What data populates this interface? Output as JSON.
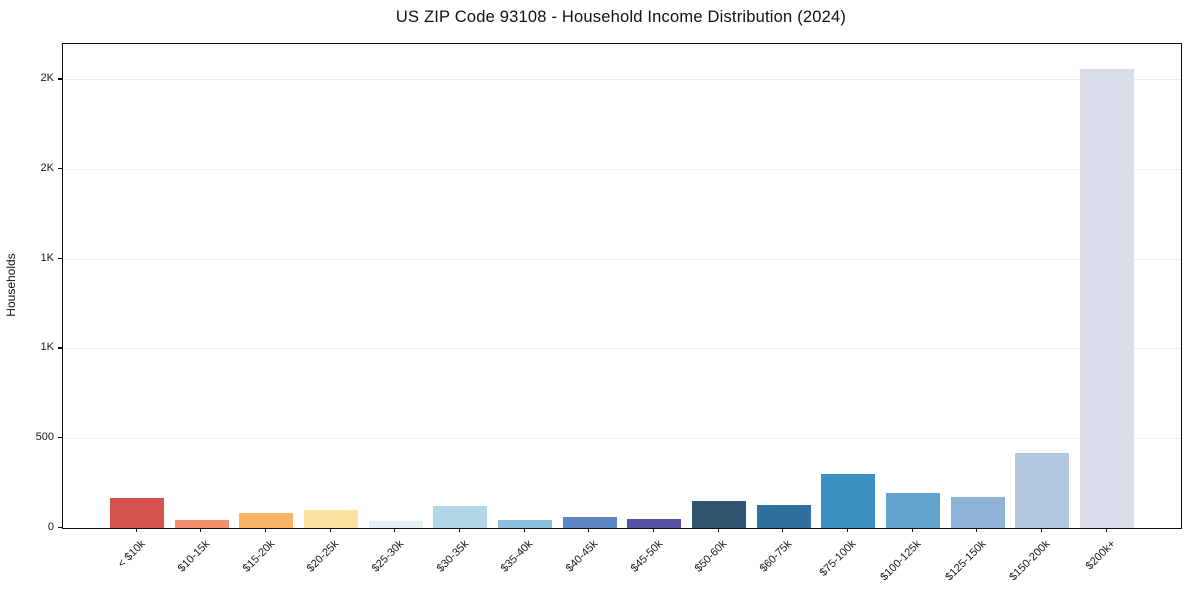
{
  "title": "US ZIP Code 93108 - Household Income Distribution (2024)",
  "chart_data": {
    "type": "bar",
    "title": "US ZIP Code 93108 - Household Income Distribution (2024)",
    "xlabel": "",
    "ylabel": "Households",
    "ylim": [
      0,
      2700
    ],
    "grid": "horizontal-gridlines-on",
    "legend": "none",
    "categories": [
      "< $10k",
      "$10-15k",
      "$15-20k",
      "$20-25k",
      "$25-30k",
      "$30-35k",
      "$35-40k",
      "$40-45k",
      "$45-50k",
      "$50-60k",
      "$60-75k",
      "$75-100k",
      "$100-125k",
      "$125-150k",
      "$150-200k",
      "$200k+"
    ],
    "values": [
      170,
      42,
      85,
      103,
      38,
      122,
      44,
      64,
      48,
      152,
      126,
      300,
      197,
      174,
      416,
      2560
    ],
    "bar_colors": [
      "#d6524e",
      "#f2906e",
      "#f9b468",
      "#fce2a0",
      "#e6f1f4",
      "#b0d7e6",
      "#8dc0dc",
      "#6085c3",
      "#5651a2",
      "#30566f",
      "#2f709e",
      "#3a8fc3",
      "#62a4cd",
      "#8db4d6",
      "#b4c8e0",
      "#dadce9"
    ],
    "y_ticks": [
      {
        "value": 0,
        "label": "0"
      },
      {
        "value": 500,
        "label": "500"
      },
      {
        "value": 1000,
        "label": "1K"
      },
      {
        "value": 1500,
        "label": "1K"
      },
      {
        "value": 2000,
        "label": "2K"
      },
      {
        "value": 2500,
        "label": "2K"
      }
    ],
    "colors": {
      "background": "#ffffff",
      "plot_background": "#ffffff",
      "gridline": "#ececec",
      "axis_frame": "#0d0d0d",
      "text": "#1a1a1a"
    }
  }
}
